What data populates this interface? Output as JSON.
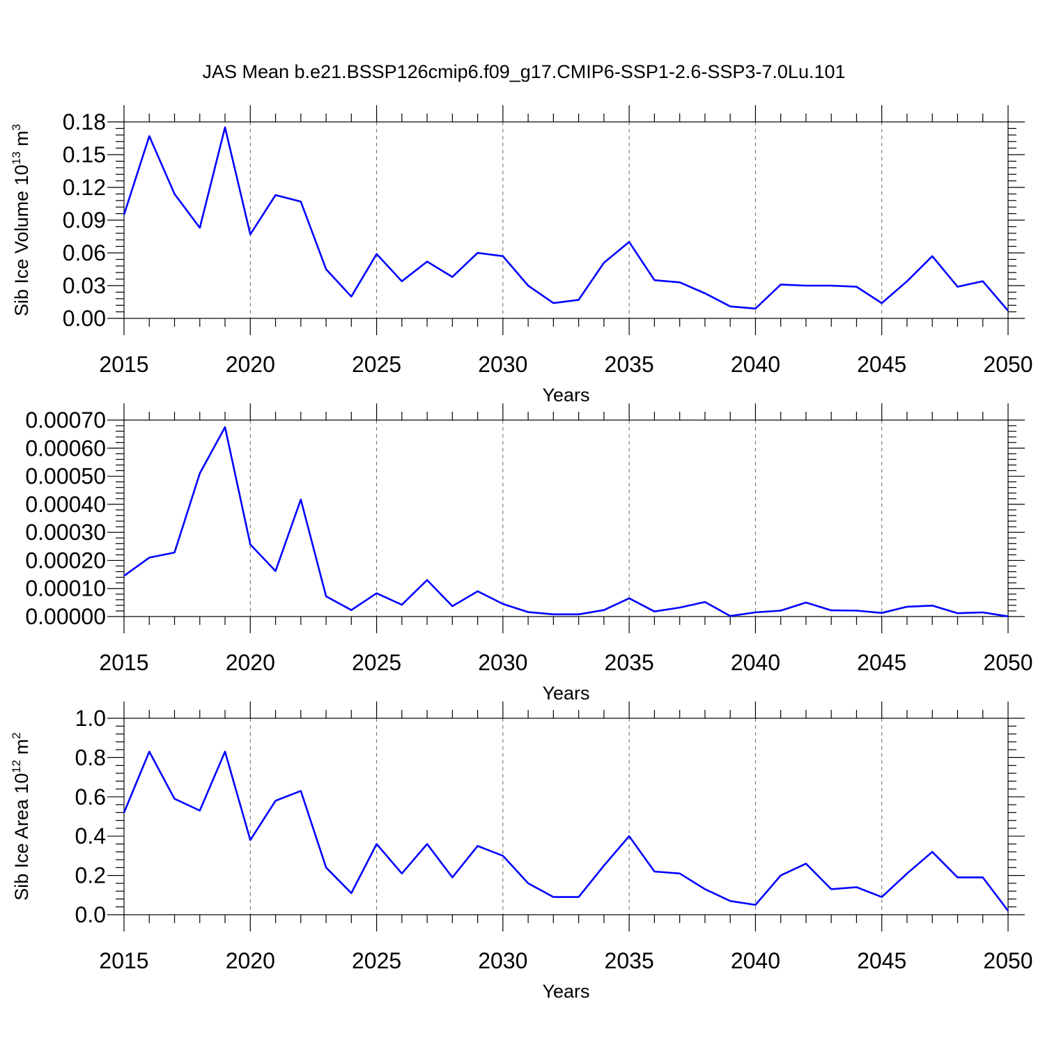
{
  "figure_title": "JAS Mean b.e21.BSSP126cmip6.f09_g17.CMIP6-SSP1-2.6-SSP3-7.0Lu.101",
  "line_color": "#0000ff",
  "chart_data": [
    {
      "type": "line",
      "name": "volume-panel",
      "xlabel": "Years",
      "ylabel": "Sib Ice Volume 10",
      "ylabel_exp": "13",
      "ylabel_unit": " m",
      "ylabel_unit_exp": "3",
      "xlim": [
        2015,
        2050
      ],
      "ylim": [
        0,
        0.18
      ],
      "xticks": [
        2015,
        2020,
        2025,
        2030,
        2035,
        2040,
        2045,
        2050
      ],
      "yticks": [
        0.0,
        0.03,
        0.06,
        0.09,
        0.12,
        0.15,
        0.18
      ],
      "ytick_labels": [
        "0.00",
        "0.03",
        "0.06",
        "0.09",
        "0.12",
        "0.15",
        "0.18"
      ],
      "x": [
        2015,
        2016,
        2017,
        2018,
        2019,
        2020,
        2021,
        2022,
        2023,
        2024,
        2025,
        2026,
        2027,
        2028,
        2029,
        2030,
        2031,
        2032,
        2033,
        2034,
        2035,
        2036,
        2037,
        2038,
        2039,
        2040,
        2041,
        2042,
        2043,
        2044,
        2045,
        2046,
        2047,
        2048,
        2049,
        2050
      ],
      "values": [
        0.095,
        0.167,
        0.114,
        0.083,
        0.175,
        0.077,
        0.113,
        0.107,
        0.045,
        0.02,
        0.059,
        0.034,
        0.052,
        0.038,
        0.06,
        0.057,
        0.03,
        0.014,
        0.017,
        0.051,
        0.07,
        0.035,
        0.033,
        0.023,
        0.011,
        0.009,
        0.031,
        0.03,
        0.03,
        0.029,
        0.014,
        0.034,
        0.057,
        0.029,
        0.034,
        0.007
      ]
    },
    {
      "type": "line",
      "name": "middle-panel",
      "xlabel": "Years",
      "ylabel": "",
      "xlim": [
        2015,
        2050
      ],
      "ylim": [
        0,
        0.0007
      ],
      "xticks": [
        2015,
        2020,
        2025,
        2030,
        2035,
        2040,
        2045,
        2050
      ],
      "yticks": [
        0,
        0.0001,
        0.0002,
        0.0003,
        0.0004,
        0.0005,
        0.0006,
        0.0007
      ],
      "ytick_labels": [
        "0.00000",
        "0.00010",
        "0.00020",
        "0.00030",
        "0.00040",
        "0.00050",
        "0.00060",
        "0.00070"
      ],
      "x": [
        2015,
        2016,
        2017,
        2018,
        2019,
        2020,
        2021,
        2022,
        2023,
        2024,
        2025,
        2026,
        2027,
        2028,
        2029,
        2030,
        2031,
        2032,
        2033,
        2034,
        2035,
        2036,
        2037,
        2038,
        2039,
        2040,
        2041,
        2042,
        2043,
        2044,
        2045,
        2046,
        2047,
        2048,
        2049,
        2050
      ],
      "values": [
        0.000145,
        0.00021,
        0.000228,
        0.00051,
        0.000675,
        0.000257,
        0.000162,
        0.000417,
        7.2e-05,
        2.3e-05,
        8.3e-05,
        4.2e-05,
        0.00013,
        3.7e-05,
        9e-05,
        4.5e-05,
        1.6e-05,
        8e-06,
        8e-06,
        2.3e-05,
        6.5e-05,
        1.8e-05,
        3.2e-05,
        5.2e-05,
        2e-06,
        1.5e-05,
        2.1e-05,
        5e-05,
        2.2e-05,
        2.1e-05,
        1.3e-05,
        3.5e-05,
        3.9e-05,
        1.2e-05,
        1.5e-05,
        5e-07
      ]
    },
    {
      "type": "line",
      "name": "area-panel",
      "xlabel": "Years",
      "ylabel": "Sib Ice Area 10",
      "ylabel_exp": "12",
      "ylabel_unit": " m",
      "ylabel_unit_exp": "2",
      "xlim": [
        2015,
        2050
      ],
      "ylim": [
        0,
        1.0
      ],
      "xticks": [
        2015,
        2020,
        2025,
        2030,
        2035,
        2040,
        2045,
        2050
      ],
      "yticks": [
        0.0,
        0.2,
        0.4,
        0.6,
        0.8,
        1.0
      ],
      "ytick_labels": [
        "0.0",
        "0.2",
        "0.4",
        "0.6",
        "0.8",
        "1.0"
      ],
      "x": [
        2015,
        2016,
        2017,
        2018,
        2019,
        2020,
        2021,
        2022,
        2023,
        2024,
        2025,
        2026,
        2027,
        2028,
        2029,
        2030,
        2031,
        2032,
        2033,
        2034,
        2035,
        2036,
        2037,
        2038,
        2039,
        2040,
        2041,
        2042,
        2043,
        2044,
        2045,
        2046,
        2047,
        2048,
        2049,
        2050
      ],
      "values": [
        0.52,
        0.83,
        0.59,
        0.53,
        0.83,
        0.38,
        0.58,
        0.63,
        0.24,
        0.11,
        0.36,
        0.21,
        0.36,
        0.19,
        0.35,
        0.3,
        0.16,
        0.09,
        0.09,
        0.25,
        0.4,
        0.22,
        0.21,
        0.13,
        0.07,
        0.05,
        0.2,
        0.26,
        0.13,
        0.14,
        0.09,
        0.21,
        0.32,
        0.19,
        0.19,
        0.02
      ]
    }
  ]
}
